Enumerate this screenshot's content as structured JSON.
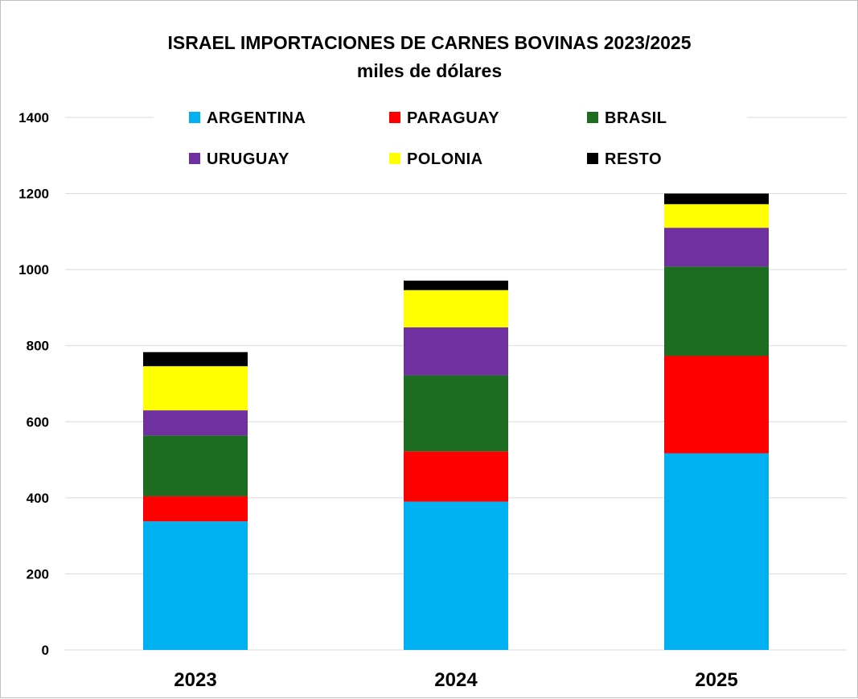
{
  "chart_data": {
    "type": "bar",
    "stacked": true,
    "title": "ISRAEL IMPORTACIONES DE CARNES BOVINAS 2023/2025",
    "subtitle": "miles de dólares",
    "categories": [
      "2023",
      "2024",
      "2025"
    ],
    "series": [
      {
        "name": "ARGENTINA",
        "color": "#00b0f0",
        "values": [
          338,
          390,
          517
        ]
      },
      {
        "name": "PARAGUAY",
        "color": "#ff0000",
        "values": [
          66,
          132,
          256
        ]
      },
      {
        "name": "BRASIL",
        "color": "#1e6b22",
        "values": [
          160,
          200,
          235
        ]
      },
      {
        "name": "URUGUAY",
        "color": "#7030a0",
        "values": [
          66,
          126,
          102
        ]
      },
      {
        "name": "POLONIA",
        "color": "#ffff00",
        "values": [
          116,
          98,
          62
        ]
      },
      {
        "name": "RESTO",
        "color": "#000000",
        "values": [
          37,
          25,
          28
        ]
      }
    ],
    "ylim": [
      0,
      1400
    ],
    "yticks": [
      "0",
      "200",
      "400",
      "600",
      "800",
      "1000",
      "1200",
      "1400"
    ],
    "grid": true,
    "legend_position": "top"
  }
}
